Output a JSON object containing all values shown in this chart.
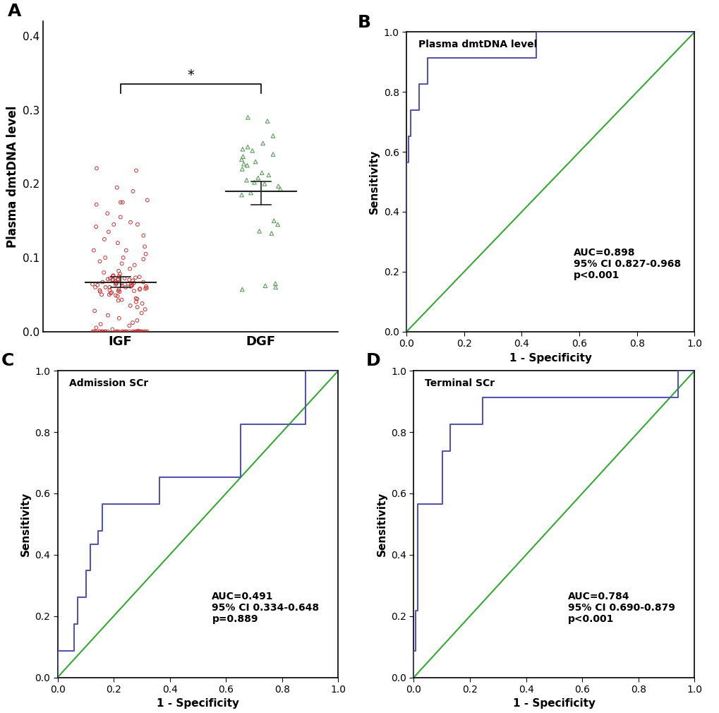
{
  "panel_A": {
    "label": "A",
    "igf_data": [
      0.221,
      0.218,
      0.195,
      0.19,
      0.178,
      0.175,
      0.175,
      0.172,
      0.16,
      0.155,
      0.148,
      0.145,
      0.145,
      0.142,
      0.135,
      0.13,
      0.125,
      0.12,
      0.115,
      0.11,
      0.11,
      0.105,
      0.1,
      0.1,
      0.098,
      0.095,
      0.092,
      0.09,
      0.085,
      0.082,
      0.08,
      0.078,
      0.076,
      0.075,
      0.075,
      0.074,
      0.073,
      0.072,
      0.072,
      0.071,
      0.071,
      0.07,
      0.07,
      0.07,
      0.07,
      0.069,
      0.068,
      0.067,
      0.067,
      0.066,
      0.066,
      0.065,
      0.065,
      0.065,
      0.064,
      0.064,
      0.063,
      0.063,
      0.062,
      0.062,
      0.061,
      0.061,
      0.06,
      0.06,
      0.06,
      0.06,
      0.059,
      0.058,
      0.058,
      0.057,
      0.057,
      0.056,
      0.056,
      0.055,
      0.055,
      0.054,
      0.054,
      0.053,
      0.052,
      0.05,
      0.05,
      0.049,
      0.048,
      0.045,
      0.044,
      0.043,
      0.042,
      0.04,
      0.038,
      0.035,
      0.033,
      0.03,
      0.028,
      0.025,
      0.022,
      0.018,
      0.015,
      0.012,
      0.01,
      0.008,
      0.005,
      0.003,
      0.001,
      0.0,
      0.0,
      0.0,
      0.0,
      0.0,
      0.0,
      0.0,
      0.0,
      0.0,
      0.0,
      0.0,
      0.0,
      0.0,
      0.0,
      0.0,
      0.0,
      0.0,
      0.0,
      0.0,
      0.0,
      0.0,
      0.0,
      0.0,
      0.0,
      0.0,
      0.0,
      0.0,
      0.0,
      0.0,
      0.0,
      0.0,
      0.0,
      0.0,
      0.0
    ],
    "dgf_data": [
      0.29,
      0.285,
      0.265,
      0.255,
      0.25,
      0.247,
      0.245,
      0.24,
      0.237,
      0.233,
      0.23,
      0.227,
      0.225,
      0.22,
      0.215,
      0.212,
      0.208,
      0.205,
      0.202,
      0.2,
      0.197,
      0.193,
      0.188,
      0.185,
      0.15,
      0.145,
      0.136,
      0.133,
      0.065,
      0.062,
      0.06,
      0.057
    ],
    "igf_mean": 0.067,
    "igf_sd_upper": 0.007,
    "igf_sd_lower": 0.007,
    "dgf_mean": 0.19,
    "dgf_sd_upper": 0.013,
    "dgf_sd_lower": 0.018,
    "ylabel": "Plasma dmtDNA level",
    "xtick_labels": [
      "IGF",
      "DGF"
    ],
    "ylim": [
      0.0,
      0.42
    ],
    "yticks": [
      0.0,
      0.1,
      0.2,
      0.3,
      0.4
    ],
    "significance_text": "*",
    "igf_color": "#cc3333",
    "dgf_color": "#5c9e5c",
    "mean_line_color": "#222222"
  },
  "panel_B": {
    "label": "B",
    "title": "Plasma dmtDNA level",
    "roc_fpr": [
      0.0,
      0.0,
      0.0,
      0.007,
      0.007,
      0.014,
      0.014,
      0.029,
      0.043,
      0.043,
      0.072,
      0.072,
      0.101,
      0.101,
      0.13,
      0.13,
      0.159,
      0.159,
      0.43,
      0.43,
      0.45,
      0.45,
      1.0
    ],
    "roc_tpr": [
      0.0,
      0.391,
      0.565,
      0.565,
      0.652,
      0.652,
      0.739,
      0.739,
      0.739,
      0.826,
      0.826,
      0.913,
      0.913,
      0.913,
      0.913,
      0.913,
      0.913,
      0.913,
      0.913,
      0.913,
      0.913,
      1.0,
      1.0
    ],
    "auc_text": "AUC=0.898\n95% CI 0.827-0.968\np<0.001",
    "xlabel": "1 - Specificity",
    "ylabel": "Sensitivity",
    "roc_color": "#5555aa",
    "diag_color": "#33aa33"
  },
  "panel_C": {
    "label": "C",
    "title": "Admission SCr",
    "roc_fpr": [
      0.0,
      0.0,
      0.007,
      0.022,
      0.043,
      0.058,
      0.058,
      0.072,
      0.072,
      0.101,
      0.101,
      0.116,
      0.116,
      0.145,
      0.145,
      0.159,
      0.159,
      0.188,
      0.188,
      0.232,
      0.232,
      0.261,
      0.261,
      0.304,
      0.304,
      0.362,
      0.362,
      0.391,
      0.391,
      0.623,
      0.623,
      0.652,
      0.652,
      0.826,
      0.826,
      0.855,
      0.855,
      0.884,
      0.884,
      0.942,
      0.942,
      1.0
    ],
    "roc_tpr": [
      0.0,
      0.087,
      0.087,
      0.087,
      0.087,
      0.087,
      0.174,
      0.174,
      0.261,
      0.261,
      0.348,
      0.348,
      0.435,
      0.435,
      0.478,
      0.478,
      0.565,
      0.565,
      0.565,
      0.565,
      0.565,
      0.565,
      0.565,
      0.565,
      0.565,
      0.565,
      0.652,
      0.652,
      0.652,
      0.652,
      0.652,
      0.652,
      0.826,
      0.826,
      0.826,
      0.826,
      0.826,
      0.826,
      1.0,
      1.0,
      1.0,
      1.0
    ],
    "auc_text": "AUC=0.491\n95% CI 0.334-0.648\np=0.889",
    "xlabel": "1 - Specificity",
    "ylabel": "Sensitivity",
    "roc_color": "#5555aa",
    "diag_color": "#33aa33"
  },
  "panel_D": {
    "label": "D",
    "title": "Terminal SCr",
    "roc_fpr": [
      0.0,
      0.0,
      0.007,
      0.007,
      0.014,
      0.014,
      0.022,
      0.022,
      0.101,
      0.101,
      0.13,
      0.13,
      0.188,
      0.188,
      0.246,
      0.246,
      0.304,
      0.304,
      0.826,
      0.826,
      0.884,
      0.884,
      0.942,
      0.942,
      1.0
    ],
    "roc_tpr": [
      0.0,
      0.087,
      0.087,
      0.217,
      0.217,
      0.565,
      0.565,
      0.565,
      0.565,
      0.739,
      0.739,
      0.826,
      0.826,
      0.826,
      0.826,
      0.913,
      0.913,
      0.913,
      0.913,
      0.913,
      0.913,
      0.913,
      0.913,
      1.0,
      1.0
    ],
    "auc_text": "AUC=0.784\n95% CI 0.690-0.879\np<0.001",
    "xlabel": "1 - Specificity",
    "ylabel": "Sensitivity",
    "roc_color": "#5555aa",
    "diag_color": "#33aa33"
  },
  "background_color": "#ffffff"
}
